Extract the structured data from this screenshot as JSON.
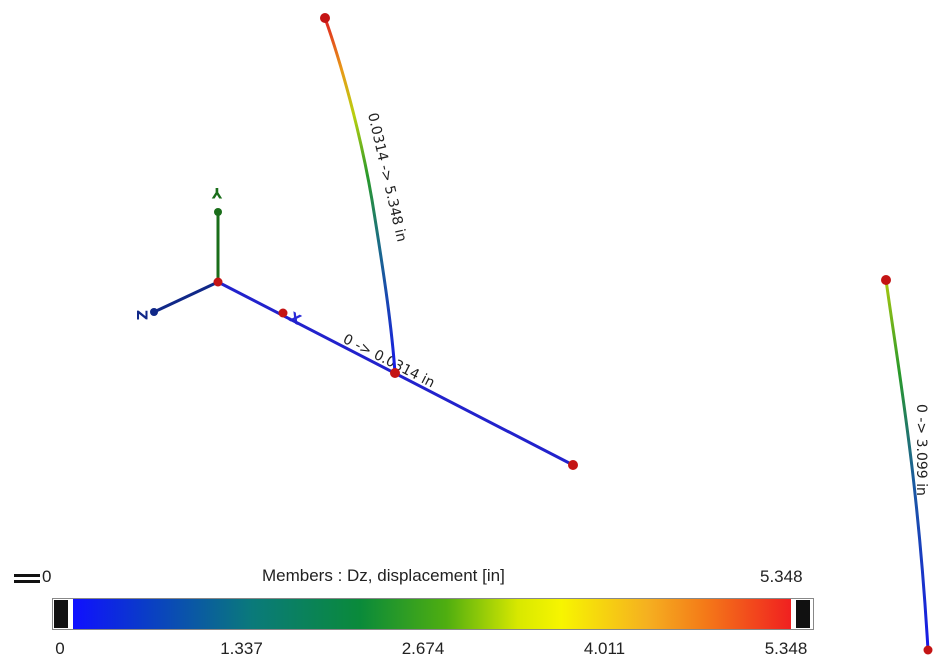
{
  "axes": {
    "y_label": "Y",
    "z_label": "Z",
    "x_label": "X",
    "colors": {
      "y": "#1a6e1a",
      "z": "#102888",
      "x": "#2a2ad8"
    }
  },
  "members": {
    "beam_label": "0 -> 0.0314 in",
    "column_label": "0.0314 -> 5.348 in",
    "right_column_label": "0 -> 3.099 in"
  },
  "legend": {
    "min": "0",
    "title": "Members : Dz, displacement [in]",
    "max": "5.348",
    "ticks": [
      "0",
      "1.337",
      "2.674",
      "4.011",
      "5.348"
    ],
    "tick_values": [
      0,
      1.337,
      2.674,
      4.011,
      5.348
    ],
    "gradient": [
      "#1010ff",
      "#0a8a3a",
      "#f7f500",
      "#f47a18",
      "#f02020"
    ]
  }
}
